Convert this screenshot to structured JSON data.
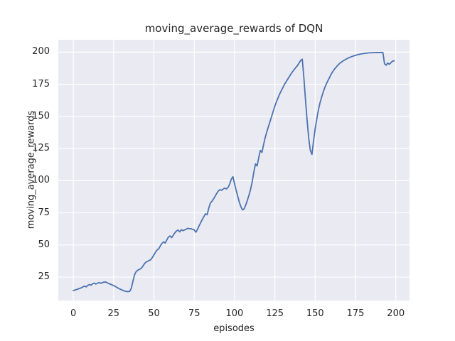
{
  "chart_data": {
    "type": "line",
    "title": "moving_average_rewards of DQN",
    "xlabel": "episodes",
    "ylabel": "moving_average_rewards",
    "x_ticks": [
      0,
      25,
      50,
      75,
      100,
      125,
      150,
      175,
      200
    ],
    "y_ticks": [
      25,
      50,
      75,
      100,
      125,
      150,
      175,
      200
    ],
    "xlim": [
      -9.3,
      208.5
    ],
    "ylim": [
      6.8,
      209.6
    ],
    "grid": true,
    "legend": false,
    "style": {
      "axes_background": "#eaeaf2",
      "grid_color": "#ffffff",
      "line_color": "#4c72b0",
      "text_color": "#262626",
      "line_width": 1.8,
      "grid_width": 1.2
    },
    "series": [
      {
        "name": "moving_average_rewards",
        "x": [
          0,
          1,
          2,
          3,
          4,
          5,
          6,
          7,
          8,
          9,
          10,
          11,
          12,
          13,
          14,
          15,
          16,
          17,
          18,
          19,
          20,
          21,
          22,
          23,
          24,
          25,
          26,
          27,
          28,
          29,
          30,
          31,
          32,
          33,
          34,
          35,
          36,
          37,
          38,
          39,
          40,
          41,
          42,
          43,
          44,
          45,
          46,
          47,
          48,
          49,
          50,
          51,
          52,
          53,
          54,
          55,
          56,
          57,
          58,
          59,
          60,
          61,
          62,
          63,
          64,
          65,
          66,
          67,
          68,
          69,
          70,
          71,
          72,
          73,
          74,
          75,
          76,
          77,
          78,
          79,
          80,
          81,
          82,
          83,
          84,
          85,
          86,
          87,
          88,
          89,
          90,
          91,
          92,
          93,
          94,
          95,
          96,
          97,
          98,
          99,
          100,
          101,
          102,
          103,
          104,
          105,
          106,
          107,
          108,
          109,
          110,
          111,
          112,
          113,
          114,
          115,
          116,
          117,
          118,
          119,
          120,
          121,
          122,
          123,
          124,
          125,
          126,
          127,
          128,
          129,
          130,
          131,
          132,
          133,
          134,
          135,
          136,
          137,
          138,
          139,
          140,
          141,
          142,
          143,
          144,
          145,
          146,
          147,
          148,
          149,
          150,
          151,
          152,
          153,
          154,
          155,
          156,
          157,
          158,
          159,
          160,
          161,
          162,
          163,
          164,
          165,
          166,
          167,
          168,
          169,
          170,
          171,
          172,
          173,
          174,
          175,
          176,
          177,
          178,
          179,
          180,
          181,
          182,
          183,
          184,
          185,
          186,
          187,
          188,
          189,
          190,
          191,
          192,
          193,
          194,
          195,
          196,
          197,
          198,
          199
        ],
        "y": [
          14.5,
          15.0,
          15.3,
          15.8,
          16.2,
          16.7,
          17.4,
          18.0,
          17.4,
          18.6,
          19.2,
          18.7,
          19.8,
          20.3,
          19.6,
          20.2,
          20.8,
          20.2,
          20.7,
          21.1,
          21.2,
          20.6,
          20.0,
          19.5,
          19.0,
          18.4,
          17.8,
          17.0,
          16.3,
          15.7,
          15.1,
          14.6,
          14.1,
          13.8,
          13.7,
          13.9,
          16.4,
          21.9,
          26.8,
          29.3,
          30.4,
          31.0,
          31.7,
          33.2,
          35.2,
          36.6,
          37.2,
          37.9,
          38.5,
          40.2,
          42.3,
          44.4,
          46.2,
          47.0,
          49.4,
          51.2,
          52.4,
          51.5,
          53.9,
          56.2,
          57.0,
          55.7,
          57.6,
          59.5,
          60.9,
          61.6,
          60.2,
          61.8,
          61.1,
          61.7,
          62.2,
          63.0,
          62.6,
          62.7,
          62.1,
          61.7,
          59.9,
          62.0,
          64.9,
          67.3,
          69.9,
          72.1,
          74.3,
          73.5,
          78.6,
          82.6,
          84.0,
          85.9,
          88.0,
          90.2,
          92.1,
          93.0,
          92.5,
          93.6,
          94.2,
          93.6,
          94.8,
          97.4,
          101.2,
          103.1,
          97.5,
          92.5,
          87.8,
          83.2,
          79.5,
          77.3,
          78.2,
          81.3,
          84.9,
          89.0,
          93.5,
          99.5,
          107.0,
          113.0,
          111.5,
          118.0,
          123.5,
          122.0,
          128.0,
          133.5,
          138.0,
          142.0,
          146.0,
          150.0,
          154.0,
          158.0,
          161.5,
          164.5,
          167.5,
          170.0,
          172.5,
          175.0,
          177.0,
          179.0,
          181.0,
          183.0,
          184.8,
          186.5,
          188.0,
          189.5,
          191.5,
          193.5,
          194.5,
          180.0,
          163.0,
          147.0,
          133.0,
          123.5,
          120.5,
          131.0,
          140.5,
          148.0,
          155.0,
          160.5,
          165.0,
          169.0,
          172.5,
          175.5,
          178.0,
          180.5,
          183.0,
          185.0,
          186.8,
          188.3,
          189.7,
          191.0,
          192.0,
          192.9,
          193.7,
          194.4,
          195.1,
          195.7,
          196.2,
          196.7,
          197.1,
          197.5,
          197.9,
          198.2,
          198.5,
          198.7,
          198.9,
          199.1,
          199.2,
          199.4,
          199.5,
          199.5,
          199.6,
          199.6,
          199.7,
          199.7,
          199.7,
          199.8,
          199.7,
          191.0,
          189.8,
          191.5,
          190.5,
          191.8,
          193.0,
          193.2
        ]
      }
    ]
  }
}
